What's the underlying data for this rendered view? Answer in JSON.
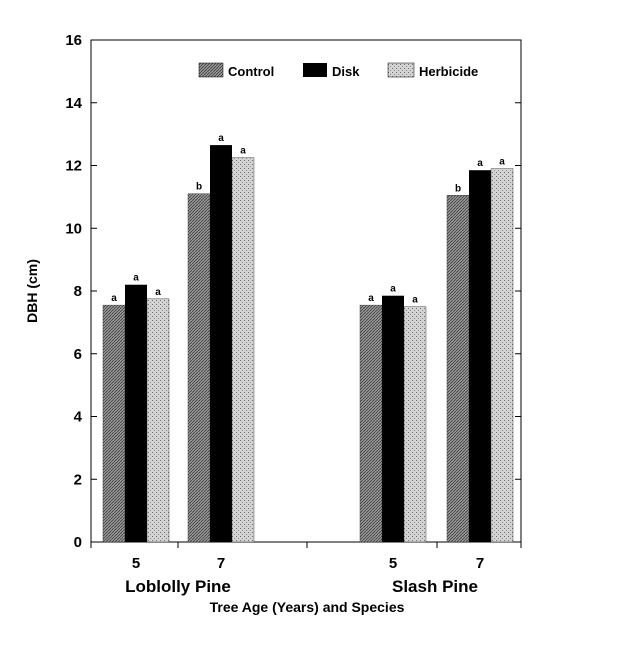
{
  "chart_data": {
    "type": "bar",
    "xlabel": "Tree Age (Years) and Species",
    "ylabel": "DBH (cm)",
    "ylim": [
      0,
      16
    ],
    "yticks": [
      "0",
      "2",
      "4",
      "6",
      "8",
      "10",
      "12",
      "14",
      "16"
    ],
    "groups": [
      {
        "species": "Loblolly Pine",
        "ages": [
          "5",
          "7"
        ]
      },
      {
        "species": "Slash Pine",
        "ages": [
          "5",
          "7"
        ]
      }
    ],
    "categories": [
      "Loblolly Pine 5",
      "Loblolly Pine 7",
      "Slash Pine 5",
      "Slash Pine 7"
    ],
    "legend_position": "top-right",
    "series": [
      {
        "name": "Control",
        "color": "#8a8a8a",
        "values": [
          7.55,
          11.1,
          7.55,
          11.05
        ],
        "labels": [
          "a",
          "b",
          "a",
          "b"
        ]
      },
      {
        "name": "Disk",
        "color": "#000000",
        "values": [
          8.2,
          12.65,
          7.85,
          11.85
        ],
        "labels": [
          "a",
          "a",
          "a",
          "a"
        ]
      },
      {
        "name": "Herbicide",
        "color": "#c8c8c8",
        "values": [
          7.75,
          12.25,
          7.5,
          11.9
        ],
        "labels": [
          "a",
          "a",
          "a",
          "a"
        ]
      }
    ]
  }
}
